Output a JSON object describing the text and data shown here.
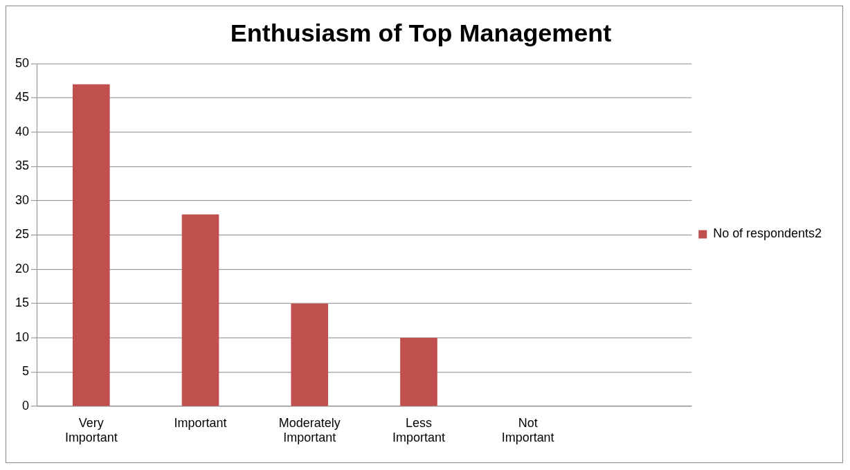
{
  "chart_data": {
    "type": "bar",
    "title": "Enthusiasm of Top Management",
    "categories": [
      "Very Important",
      "Important",
      "Moderately Important",
      "Less Important",
      "Not Important",
      null
    ],
    "series": [
      {
        "name": "No of respondents2",
        "color": "#c0504d",
        "values": [
          47,
          28,
          15,
          10,
          0,
          null
        ]
      }
    ],
    "ylim": [
      0,
      50
    ],
    "yticks": [
      0,
      5,
      10,
      15,
      20,
      25,
      30,
      35,
      40,
      45,
      50
    ],
    "grid": "y",
    "legend": "right"
  }
}
